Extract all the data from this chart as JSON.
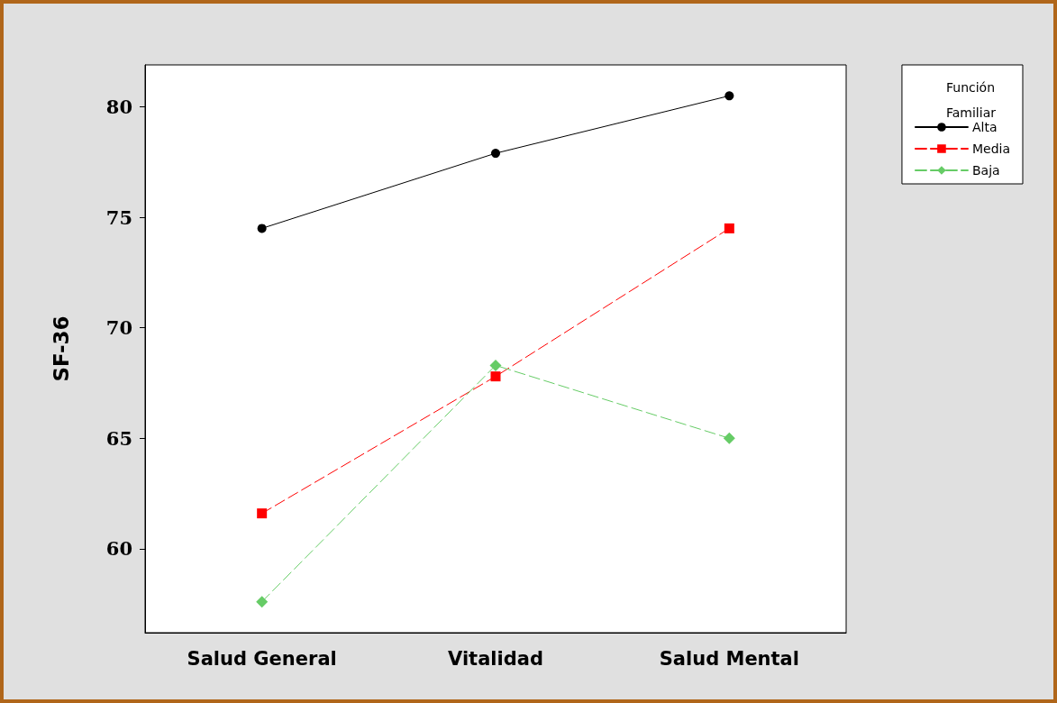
{
  "chart_data": {
    "type": "line",
    "ylabel": "SF-36",
    "legend_title": "Función Familiar",
    "categories": [
      "Salud General",
      "Vitalidad",
      "Salud Mental"
    ],
    "series": [
      {
        "name": "Alta",
        "color": "#000000",
        "values": [
          74.5,
          77.9,
          80.5
        ],
        "marker": "circle",
        "line_style": "solid"
      },
      {
        "name": "Media",
        "color": "#ff0000",
        "values": [
          61.6,
          67.8,
          74.5
        ],
        "marker": "square",
        "line_style": "dashed"
      },
      {
        "name": "Baja",
        "color": "#66cc66",
        "values": [
          57.6,
          68.3,
          65.0
        ],
        "marker": "diamond",
        "line_style": "dashed"
      }
    ],
    "ylim": [
      56.2,
      81.9
    ],
    "yticks": [
      60,
      65,
      70,
      75,
      80
    ],
    "grid": false,
    "legend": "top right"
  }
}
